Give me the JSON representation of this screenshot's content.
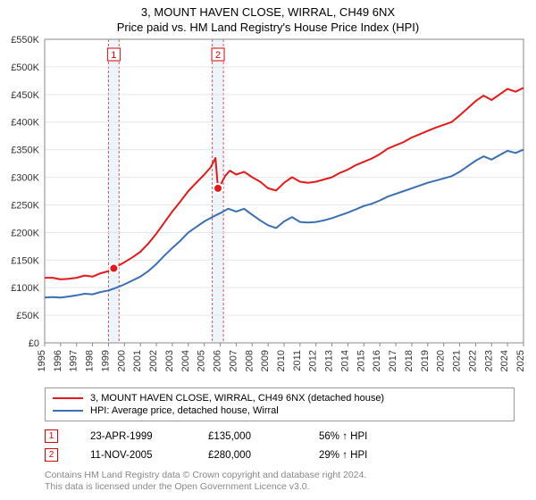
{
  "title": "3, MOUNT HAVEN CLOSE, WIRRAL, CH49 6NX",
  "subtitle": "Price paid vs. HM Land Registry's House Price Index (HPI)",
  "chart": {
    "type": "line",
    "background_color": "#ffffff",
    "grid_color": "#e6e6e6",
    "axis_color": "#888888",
    "x_start_year": 1995,
    "x_end_year": 2025,
    "x_tick_step": 1,
    "ylim": [
      0,
      550000
    ],
    "y_tick_step": 50000,
    "y_tick_labels": [
      "£0",
      "£50K",
      "£100K",
      "£150K",
      "£200K",
      "£250K",
      "£300K",
      "£350K",
      "£400K",
      "£450K",
      "£500K",
      "£550K"
    ],
    "tick_fontsize": 11,
    "line_width": 2,
    "series": [
      {
        "name": "3, MOUNT HAVEN CLOSE, WIRRAL, CH49 6NX (detached house)",
        "color": "#e51919",
        "values_year_price": [
          [
            1995.0,
            118000
          ],
          [
            1995.5,
            118000
          ],
          [
            1996.0,
            115000
          ],
          [
            1996.5,
            116000
          ],
          [
            1997.0,
            118000
          ],
          [
            1997.5,
            122000
          ],
          [
            1998.0,
            120000
          ],
          [
            1998.5,
            126000
          ],
          [
            1999.0,
            130000
          ],
          [
            1999.33,
            135000
          ],
          [
            1999.5,
            138000
          ],
          [
            2000.0,
            146000
          ],
          [
            2000.5,
            155000
          ],
          [
            2001.0,
            165000
          ],
          [
            2001.5,
            180000
          ],
          [
            2002.0,
            198000
          ],
          [
            2002.5,
            218000
          ],
          [
            2003.0,
            238000
          ],
          [
            2003.5,
            256000
          ],
          [
            2004.0,
            275000
          ],
          [
            2004.5,
            290000
          ],
          [
            2005.0,
            305000
          ],
          [
            2005.4,
            318000
          ],
          [
            2005.7,
            335000
          ],
          [
            2005.86,
            280000
          ],
          [
            2006.0,
            285000
          ],
          [
            2006.3,
            302000
          ],
          [
            2006.6,
            312000
          ],
          [
            2007.0,
            305000
          ],
          [
            2007.5,
            310000
          ],
          [
            2008.0,
            300000
          ],
          [
            2008.5,
            292000
          ],
          [
            2009.0,
            280000
          ],
          [
            2009.5,
            276000
          ],
          [
            2010.0,
            290000
          ],
          [
            2010.5,
            300000
          ],
          [
            2011.0,
            292000
          ],
          [
            2011.5,
            290000
          ],
          [
            2012.0,
            292000
          ],
          [
            2012.5,
            296000
          ],
          [
            2013.0,
            300000
          ],
          [
            2013.5,
            308000
          ],
          [
            2014.0,
            314000
          ],
          [
            2014.5,
            322000
          ],
          [
            2015.0,
            328000
          ],
          [
            2015.5,
            334000
          ],
          [
            2016.0,
            342000
          ],
          [
            2016.5,
            352000
          ],
          [
            2017.0,
            358000
          ],
          [
            2017.5,
            364000
          ],
          [
            2018.0,
            372000
          ],
          [
            2018.5,
            378000
          ],
          [
            2019.0,
            384000
          ],
          [
            2019.5,
            390000
          ],
          [
            2020.0,
            395000
          ],
          [
            2020.5,
            400000
          ],
          [
            2021.0,
            412000
          ],
          [
            2021.5,
            425000
          ],
          [
            2022.0,
            438000
          ],
          [
            2022.5,
            448000
          ],
          [
            2023.0,
            440000
          ],
          [
            2023.5,
            450000
          ],
          [
            2024.0,
            460000
          ],
          [
            2024.5,
            455000
          ],
          [
            2025.0,
            462000
          ]
        ]
      },
      {
        "name": "HPI: Average price, detached house, Wirral",
        "color": "#3b6fb3",
        "values_year_price": [
          [
            1995.0,
            82000
          ],
          [
            1995.5,
            83000
          ],
          [
            1996.0,
            82000
          ],
          [
            1996.5,
            84000
          ],
          [
            1997.0,
            86000
          ],
          [
            1997.5,
            89000
          ],
          [
            1998.0,
            88000
          ],
          [
            1998.5,
            92000
          ],
          [
            1999.0,
            95000
          ],
          [
            1999.5,
            100000
          ],
          [
            2000.0,
            106000
          ],
          [
            2000.5,
            113000
          ],
          [
            2001.0,
            120000
          ],
          [
            2001.5,
            130000
          ],
          [
            2002.0,
            143000
          ],
          [
            2002.5,
            158000
          ],
          [
            2003.0,
            172000
          ],
          [
            2003.5,
            185000
          ],
          [
            2004.0,
            200000
          ],
          [
            2004.5,
            210000
          ],
          [
            2005.0,
            220000
          ],
          [
            2005.5,
            228000
          ],
          [
            2006.0,
            235000
          ],
          [
            2006.5,
            243000
          ],
          [
            2007.0,
            238000
          ],
          [
            2007.5,
            243000
          ],
          [
            2008.0,
            232000
          ],
          [
            2008.5,
            222000
          ],
          [
            2009.0,
            213000
          ],
          [
            2009.5,
            208000
          ],
          [
            2010.0,
            220000
          ],
          [
            2010.5,
            228000
          ],
          [
            2011.0,
            219000
          ],
          [
            2011.5,
            218000
          ],
          [
            2012.0,
            219000
          ],
          [
            2012.5,
            222000
          ],
          [
            2013.0,
            226000
          ],
          [
            2013.5,
            231000
          ],
          [
            2014.0,
            236000
          ],
          [
            2014.5,
            242000
          ],
          [
            2015.0,
            248000
          ],
          [
            2015.5,
            252000
          ],
          [
            2016.0,
            258000
          ],
          [
            2016.5,
            265000
          ],
          [
            2017.0,
            270000
          ],
          [
            2017.5,
            275000
          ],
          [
            2018.0,
            280000
          ],
          [
            2018.5,
            285000
          ],
          [
            2019.0,
            290000
          ],
          [
            2019.5,
            294000
          ],
          [
            2020.0,
            298000
          ],
          [
            2020.5,
            302000
          ],
          [
            2021.0,
            310000
          ],
          [
            2021.5,
            320000
          ],
          [
            2022.0,
            330000
          ],
          [
            2022.5,
            338000
          ],
          [
            2023.0,
            332000
          ],
          [
            2023.5,
            340000
          ],
          [
            2024.0,
            348000
          ],
          [
            2024.5,
            344000
          ],
          [
            2025.0,
            350000
          ]
        ]
      }
    ],
    "sale_markers": [
      {
        "index": "1",
        "year": 1999.33,
        "price": 135000,
        "band_start": 1999.0,
        "band_end": 1999.66
      },
      {
        "index": "2",
        "year": 2005.86,
        "price": 280000,
        "band_start": 2005.5,
        "band_end": 2006.2
      }
    ],
    "band_color": "#ecf4fc",
    "band_border_color": "#d95757",
    "marker_box_border": "#e00000",
    "marker_box_bg": "#ffffff",
    "marker_dot_fill": "#e51919",
    "marker_dot_stroke": "#ffffff"
  },
  "legend_series": [
    {
      "color": "#e51919",
      "label": "3, MOUNT HAVEN CLOSE, WIRRAL, CH49 6NX (detached house)"
    },
    {
      "color": "#3b6fb3",
      "label": "HPI: Average price, detached house, Wirral"
    }
  ],
  "sales": [
    {
      "index": "1",
      "date": "23-APR-1999",
      "price": "£135,000",
      "diff": "56% ↑ HPI"
    },
    {
      "index": "2",
      "date": "11-NOV-2005",
      "price": "£280,000",
      "diff": "29% ↑ HPI"
    }
  ],
  "attribution": {
    "line1": "Contains HM Land Registry data © Crown copyright and database right 2024.",
    "line2": "This data is licensed under the Open Government Licence v3.0."
  }
}
